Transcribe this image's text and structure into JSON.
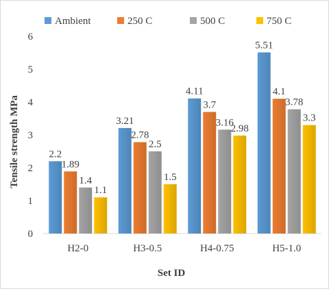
{
  "chart_data": {
    "type": "bar",
    "title": "",
    "xlabel": "Set ID",
    "ylabel": "Tensile strength MPa",
    "categories": [
      "H2-0",
      "H3-0.5",
      "H4-0.75",
      "H5-1.0"
    ],
    "ylim": [
      0,
      6
    ],
    "yticks": [
      0,
      1,
      2,
      3,
      4,
      5,
      6
    ],
    "grid": false,
    "legend_position": "top",
    "series": [
      {
        "name": "Ambient",
        "color": "#5b9bd5",
        "values": [
          2.2,
          3.21,
          4.11,
          5.51
        ],
        "labels": [
          "2.2",
          "3.21",
          "4.11",
          "5.51"
        ]
      },
      {
        "name": "250 C",
        "color": "#ed7d31",
        "values": [
          1.89,
          2.78,
          3.7,
          4.1
        ],
        "labels": [
          "1.89",
          "2.78",
          "3.7",
          "4.1"
        ]
      },
      {
        "name": "500 C",
        "color": "#a5a5a5",
        "values": [
          1.4,
          2.5,
          3.16,
          3.78
        ],
        "labels": [
          "1.4",
          "2.5",
          "3.16",
          "3.78"
        ]
      },
      {
        "name": "750 C",
        "color": "#ffc000",
        "values": [
          1.1,
          1.5,
          2.98,
          3.3
        ],
        "labels": [
          "1.1",
          "1.5",
          "2.98",
          "3.3"
        ]
      }
    ]
  }
}
